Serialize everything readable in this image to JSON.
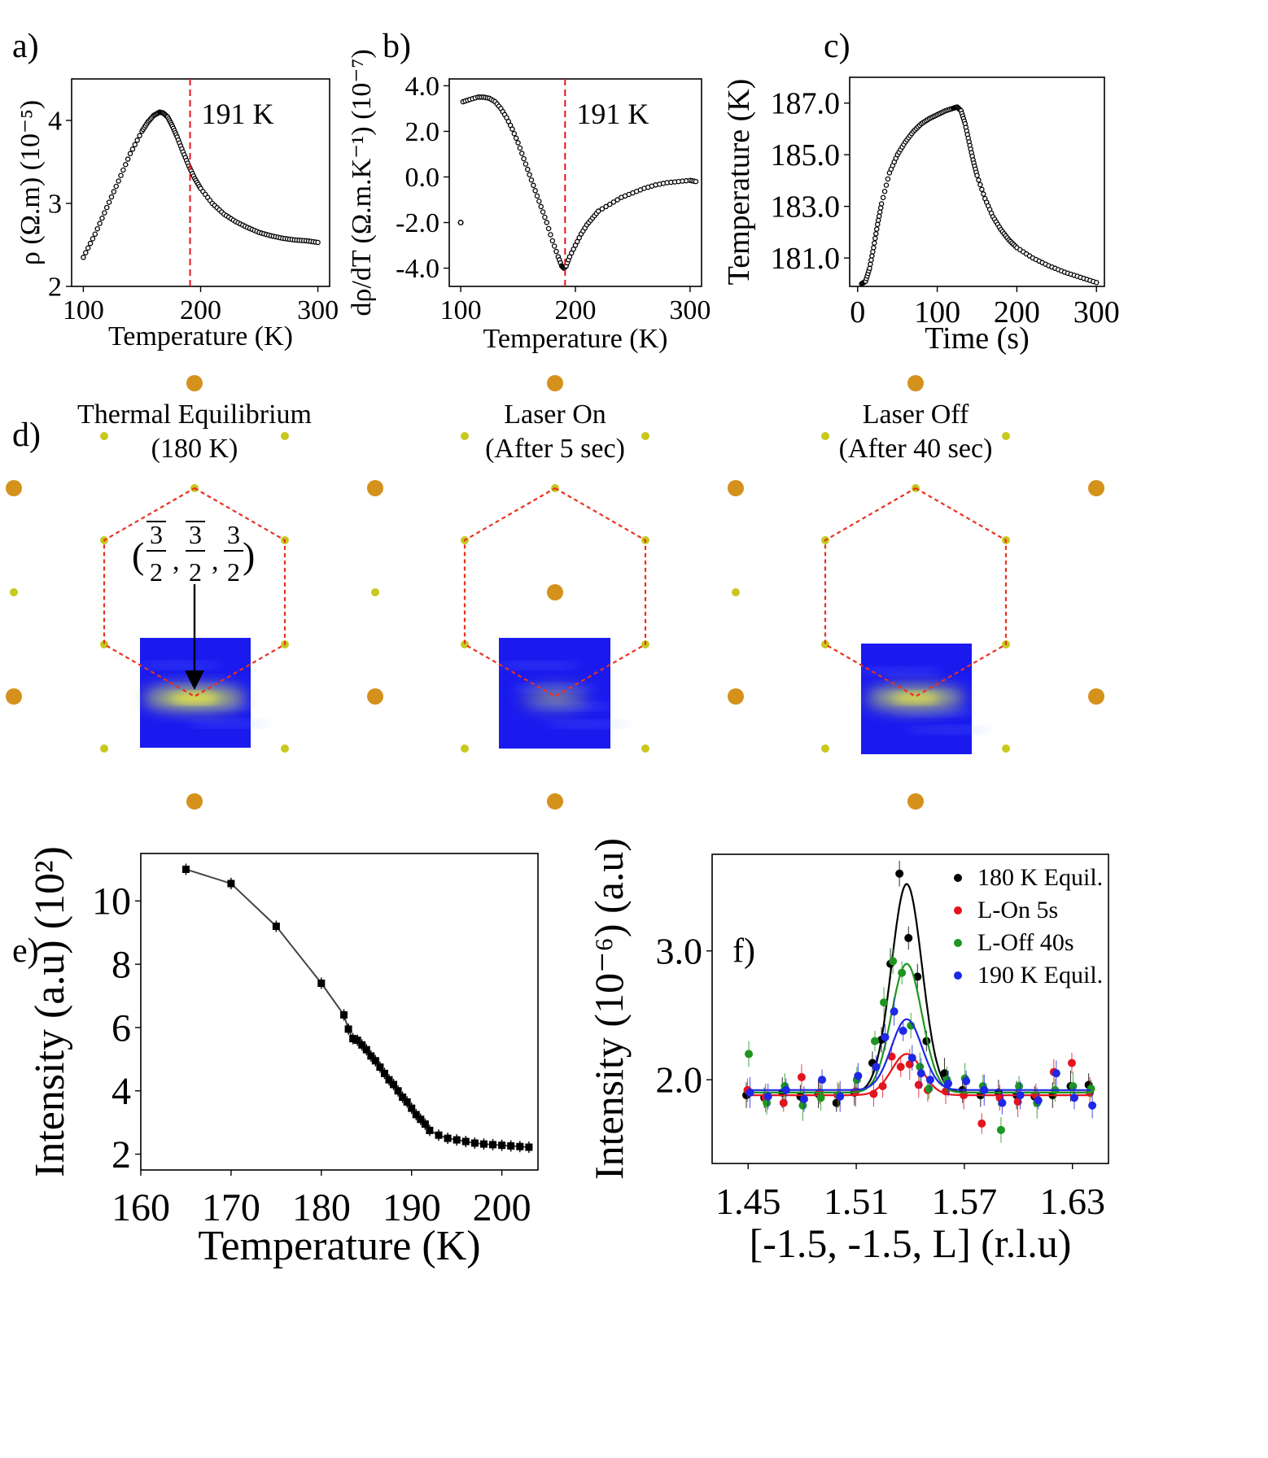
{
  "panel_labels": {
    "a": "a)",
    "b": "b)",
    "c": "c)",
    "d": "d)",
    "e": "e)",
    "f": "f)"
  },
  "colors": {
    "bragg": "#d4911c",
    "superlattice": "#c8c81e",
    "hexagon": "#e8321e",
    "map_blue": "#1a1aef",
    "map_hot": "#f0f03c"
  },
  "chart_data": [
    {
      "id": "a",
      "type": "scatter",
      "xlabel": "Temperature (K)",
      "ylabel": "ρ (Ω.m) (10⁻⁵)",
      "xlim": [
        90,
        310
      ],
      "ylim": [
        2,
        4.5
      ],
      "xticks": [
        100,
        200,
        300
      ],
      "yticks": [
        2,
        3,
        4
      ],
      "xtick_labels": [
        "100",
        "200",
        "300"
      ],
      "ytick_labels": [
        "2",
        "3",
        "4"
      ],
      "marker_line": 191,
      "marker_label": "191 K",
      "x": [
        100,
        110,
        120,
        130,
        140,
        150,
        155,
        160,
        165,
        168,
        172,
        176,
        180,
        185,
        190,
        195,
        200,
        210,
        220,
        230,
        240,
        250,
        260,
        270,
        280,
        290,
        300
      ],
      "y": [
        2.35,
        2.63,
        2.95,
        3.27,
        3.6,
        3.87,
        3.98,
        4.06,
        4.1,
        4.09,
        4.04,
        3.93,
        3.8,
        3.62,
        3.45,
        3.3,
        3.18,
        3.0,
        2.87,
        2.78,
        2.71,
        2.65,
        2.61,
        2.58,
        2.56,
        2.55,
        2.53
      ]
    },
    {
      "id": "b",
      "type": "scatter",
      "xlabel": "Temperature (K)",
      "ylabel": "dρ/dT (Ω.m.K⁻¹) (10⁻⁷)",
      "xlim": [
        90,
        310
      ],
      "ylim": [
        -4.8,
        4.3
      ],
      "xticks": [
        100,
        200,
        300
      ],
      "yticks": [
        -4.0,
        -2.0,
        0.0,
        2.0,
        4.0
      ],
      "xtick_labels": [
        "100",
        "200",
        "300"
      ],
      "ytick_labels": [
        "-4.0",
        "-2.0",
        "0.0",
        "2.0",
        "4.0"
      ],
      "marker_line": 191,
      "marker_label": "191 K",
      "outlier": {
        "x": 100,
        "y": -2.0
      },
      "x": [
        102,
        108,
        115,
        120,
        125,
        130,
        135,
        140,
        145,
        150,
        155,
        160,
        165,
        170,
        175,
        180,
        185,
        188,
        190,
        192,
        195,
        200,
        205,
        210,
        215,
        220,
        230,
        240,
        250,
        260,
        270,
        280,
        290,
        300,
        305
      ],
      "y": [
        3.3,
        3.4,
        3.5,
        3.5,
        3.45,
        3.3,
        3.0,
        2.6,
        2.1,
        1.5,
        0.8,
        0.1,
        -0.6,
        -1.3,
        -2.0,
        -2.8,
        -3.5,
        -3.9,
        -4.0,
        -3.9,
        -3.5,
        -3.0,
        -2.5,
        -2.1,
        -1.8,
        -1.5,
        -1.2,
        -0.9,
        -0.7,
        -0.5,
        -0.35,
        -0.25,
        -0.2,
        -0.15,
        -0.2
      ]
    },
    {
      "id": "c",
      "type": "scatter",
      "xlabel": "Time (s)",
      "ylabel": "Temperature (K)",
      "xlim": [
        -10,
        310
      ],
      "ylim": [
        179.9,
        188.0
      ],
      "xticks": [
        0,
        100,
        200,
        300
      ],
      "yticks": [
        181.0,
        183.0,
        185.0,
        187.0
      ],
      "xtick_labels": [
        "0",
        "100",
        "200",
        "300"
      ],
      "ytick_labels": [
        "181.0",
        "183.0",
        "185.0",
        "187.0"
      ],
      "x": [
        5,
        10,
        15,
        20,
        25,
        30,
        40,
        50,
        60,
        70,
        80,
        90,
        100,
        110,
        120,
        125,
        130,
        135,
        140,
        145,
        150,
        160,
        170,
        180,
        190,
        200,
        220,
        240,
        260,
        280,
        300
      ],
      "y": [
        180.0,
        180.1,
        180.6,
        181.4,
        182.3,
        183.1,
        184.3,
        185.0,
        185.5,
        185.9,
        186.2,
        186.4,
        186.55,
        186.7,
        186.8,
        186.85,
        186.7,
        186.2,
        185.5,
        184.8,
        184.2,
        183.3,
        182.6,
        182.1,
        181.7,
        181.4,
        181.0,
        180.7,
        180.45,
        180.25,
        180.05
      ]
    },
    {
      "id": "e",
      "type": "line",
      "xlabel": "Temperature (K)",
      "ylabel": "Intensity (a.u) (10²)",
      "xlim": [
        160,
        204
      ],
      "ylim": [
        1.5,
        11.5
      ],
      "xticks": [
        160,
        170,
        180,
        190,
        200
      ],
      "yticks": [
        2,
        4,
        6,
        8,
        10
      ],
      "xtick_labels": [
        "160",
        "170",
        "180",
        "190",
        "200"
      ],
      "ytick_labels": [
        "2",
        "4",
        "6",
        "8",
        "10"
      ],
      "x": [
        165,
        170,
        175,
        180,
        182.5,
        183,
        183.5,
        184,
        184.5,
        185,
        185.5,
        186,
        186.5,
        187,
        187.5,
        188,
        188.5,
        189,
        189.5,
        190,
        190.5,
        191,
        191.5,
        192,
        193,
        194,
        195,
        196,
        197,
        198,
        199,
        200,
        201,
        202,
        203
      ],
      "y": [
        11.0,
        10.55,
        9.2,
        7.4,
        6.4,
        5.95,
        5.65,
        5.6,
        5.45,
        5.3,
        5.1,
        4.95,
        4.75,
        4.55,
        4.35,
        4.2,
        4.0,
        3.8,
        3.65,
        3.45,
        3.25,
        3.1,
        2.95,
        2.75,
        2.6,
        2.5,
        2.45,
        2.4,
        2.35,
        2.32,
        2.3,
        2.28,
        2.26,
        2.24,
        2.22
      ]
    },
    {
      "id": "f",
      "type": "scatter",
      "xlabel": "[-1.5, -1.5, L] (r.l.u)",
      "ylabel": "Intensity (10⁻⁶) (a.u)",
      "xlim": [
        1.43,
        1.65
      ],
      "ylim": [
        1.35,
        3.75
      ],
      "xticks": [
        1.45,
        1.51,
        1.57,
        1.63
      ],
      "yticks": [
        2.0,
        3.0
      ],
      "xtick_labels": [
        "1.45",
        "1.51",
        "1.57",
        "1.63"
      ],
      "ytick_labels": [
        "2.0",
        "3.0"
      ],
      "legend_position": "top-right",
      "x": [
        1.45,
        1.46,
        1.47,
        1.48,
        1.49,
        1.5,
        1.51,
        1.52,
        1.525,
        1.53,
        1.535,
        1.54,
        1.545,
        1.55,
        1.56,
        1.57,
        1.58,
        1.59,
        1.6,
        1.61,
        1.62,
        1.63,
        1.64
      ],
      "series": [
        {
          "name": "180 K Equil.",
          "color": "#000000",
          "fit": {
            "base": 1.9,
            "amp": 1.62,
            "center": 1.538,
            "sigma": 0.0085
          },
          "y": [
            1.88,
            1.86,
            1.9,
            1.87,
            1.89,
            1.82,
            1.9,
            2.13,
            2.31,
            2.9,
            3.6,
            3.1,
            2.8,
            2.3,
            2.05,
            1.92,
            1.88,
            1.9,
            1.88,
            1.87,
            1.88,
            1.95,
            1.96
          ]
        },
        {
          "name": "L-On 5s",
          "color": "#e4141e",
          "fit": {
            "base": 1.88,
            "amp": 0.32,
            "center": 1.538,
            "sigma": 0.0085
          },
          "y": [
            1.92,
            1.86,
            1.82,
            2.02,
            1.9,
            1.88,
            1.91,
            1.89,
            1.95,
            2.18,
            2.1,
            2.12,
            1.96,
            1.92,
            1.91,
            1.88,
            1.66,
            1.86,
            1.83,
            1.88,
            2.06,
            2.13,
            1.9
          ]
        },
        {
          "name": "L-Off 40s",
          "color": "#1e9620",
          "fit": {
            "base": 1.9,
            "amp": 1.0,
            "center": 1.538,
            "sigma": 0.0085
          },
          "y": [
            2.2,
            1.82,
            1.95,
            1.8,
            1.86,
            1.88,
            2.0,
            2.3,
            2.6,
            2.92,
            2.83,
            2.42,
            2.1,
            1.93,
            2.0,
            2.01,
            1.95,
            1.61,
            1.95,
            1.82,
            1.92,
            1.95,
            1.93
          ]
        },
        {
          "name": "190 K Equil.",
          "color": "#1e28e6",
          "fit": {
            "base": 1.92,
            "amp": 0.55,
            "center": 1.538,
            "sigma": 0.0085
          },
          "y": [
            1.9,
            1.87,
            1.92,
            1.85,
            2.0,
            1.87,
            2.03,
            2.1,
            2.33,
            2.53,
            2.38,
            2.17,
            2.05,
            2.0,
            1.97,
            1.99,
            1.92,
            1.82,
            1.88,
            1.84,
            2.05,
            1.86,
            1.8
          ]
        }
      ]
    }
  ],
  "diffraction": {
    "panels": [
      {
        "title": "Thermal Equilibrium",
        "subtitle": "(180 K)",
        "peak": 0.9
      },
      {
        "title": "Laser On",
        "subtitle": "(After 5 sec)",
        "peak": 0.15
      },
      {
        "title": "Laser Off",
        "subtitle": "(After 40 sec)",
        "peak": 0.8
      }
    ],
    "annotation": {
      "open": "(",
      "close": ")",
      "num": "3",
      "den": "2",
      "sep": ","
    }
  }
}
